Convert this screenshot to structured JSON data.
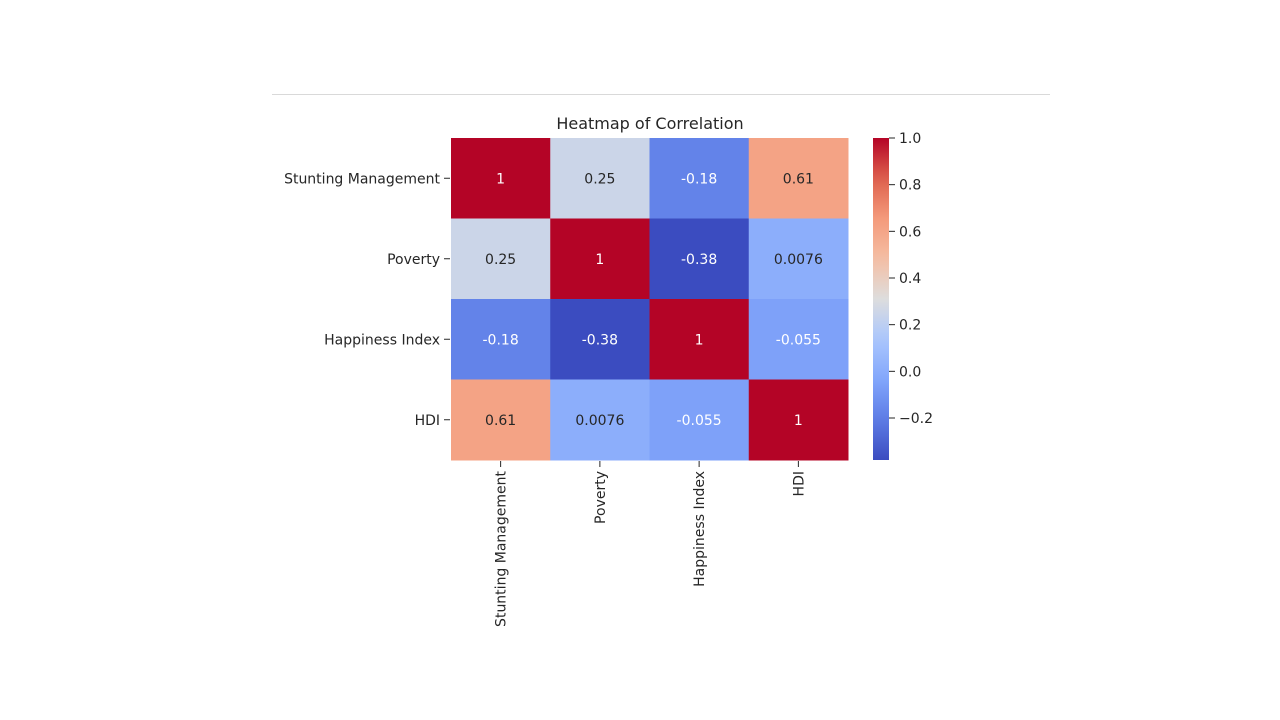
{
  "chart_data": {
    "type": "heatmap",
    "title": "Heatmap of Correlation",
    "row_labels": [
      "Stunting Management",
      "Poverty",
      "Happiness Index",
      "HDI"
    ],
    "col_labels": [
      "Stunting Management",
      "Poverty",
      "Happiness Index",
      "HDI"
    ],
    "values": [
      [
        1,
        0.25,
        -0.18,
        0.61
      ],
      [
        0.25,
        1,
        -0.38,
        0.0076
      ],
      [
        -0.18,
        -0.38,
        1,
        -0.055
      ],
      [
        0.61,
        0.0076,
        -0.055,
        1
      ]
    ],
    "annotations": [
      [
        "1",
        "0.25",
        "-0.18",
        "0.61"
      ],
      [
        "0.25",
        "1",
        "-0.38",
        "0.0076"
      ],
      [
        "-0.18",
        "-0.38",
        "1",
        "-0.055"
      ],
      [
        "0.61",
        "0.0076",
        "-0.055",
        "1"
      ]
    ],
    "colormap": "coolwarm",
    "vmin": -0.38,
    "vmax": 1.0,
    "colorbar_ticks": [
      1.0,
      0.8,
      0.6,
      0.4,
      0.2,
      0.0,
      -0.2
    ],
    "colorbar_tick_labels": [
      "1.0",
      "0.8",
      "0.6",
      "0.4",
      "0.2",
      "0.0",
      "−0.2"
    ]
  }
}
